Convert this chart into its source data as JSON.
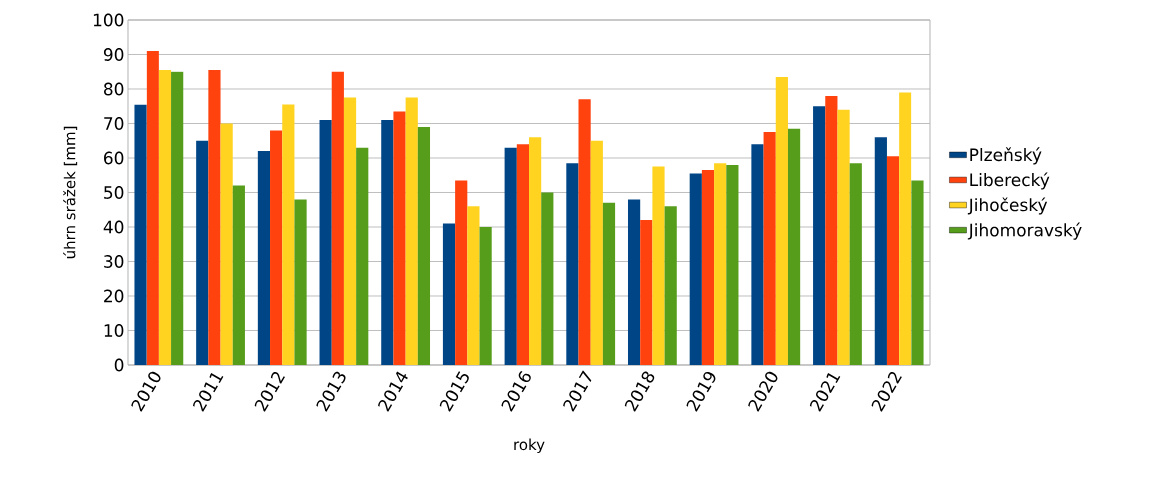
{
  "chart_data": {
    "type": "bar",
    "xlabel": "roky",
    "ylabel": "úhrn srážek [mm]",
    "categories": [
      "2010",
      "2011",
      "2012",
      "2013",
      "2014",
      "2015",
      "2016",
      "2017",
      "2018",
      "2019",
      "2020",
      "2021",
      "2022"
    ],
    "series": [
      {
        "name": "Plzeňský",
        "color": "#004586",
        "values": [
          75.5,
          65,
          62,
          71,
          71,
          41,
          63,
          58.5,
          48,
          55.5,
          64,
          75,
          66
        ]
      },
      {
        "name": "Liberecký",
        "color": "#ff420e",
        "values": [
          91,
          85.5,
          68,
          85,
          73.5,
          53.5,
          64,
          77,
          42,
          56.5,
          67.5,
          78,
          60.5
        ]
      },
      {
        "name": "Jihočeský",
        "color": "#ffd320",
        "values": [
          85.5,
          70,
          75.5,
          77.5,
          77.5,
          46,
          66,
          65,
          57.5,
          58.5,
          83.5,
          74,
          79
        ]
      },
      {
        "name": "Jihomoravský",
        "color": "#579d1c",
        "values": [
          85,
          52,
          48,
          63,
          69,
          40,
          50,
          47,
          46,
          58,
          68.5,
          58.5,
          53.5
        ]
      }
    ],
    "ylim": [
      0,
      100
    ],
    "yticks": [
      0,
      10,
      20,
      30,
      40,
      50,
      60,
      70,
      80,
      90,
      100
    ],
    "grid": "y",
    "legend": "right"
  }
}
